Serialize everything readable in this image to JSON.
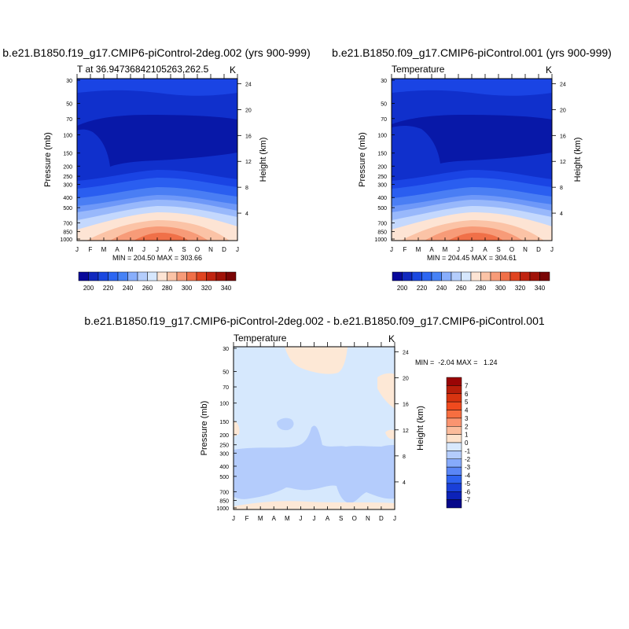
{
  "chart_data": [
    {
      "type": "heatmap",
      "title": "b.e21.B1850.f19_g17.CMIP6-piControl-2deg.002 (yrs 900-999)",
      "left_label": "T at 36.94736842105263,262.5",
      "right_label": "K",
      "stats": "MIN = 204.50 MAX = 303.66",
      "xlabel": "",
      "ylabel": "Pressure (mb)",
      "y2label": "Height (km)",
      "x_ticks": [
        "J",
        "F",
        "M",
        "A",
        "M",
        "J",
        "J",
        "A",
        "S",
        "O",
        "N",
        "D",
        "J"
      ],
      "p_ticks": [
        "30",
        "50",
        "70",
        "100",
        "150",
        "200",
        "250",
        "300",
        "400",
        "500",
        "700",
        "850",
        "1000"
      ],
      "h_ticks": [
        "24",
        "20",
        "16",
        "12",
        "8",
        "4"
      ],
      "colorbar_labels": [
        "200",
        "220",
        "240",
        "260",
        "280",
        "300",
        "320",
        "340"
      ],
      "colorbar_colors": [
        "#08089a",
        "#1028be",
        "#1a48e0",
        "#2c66f2",
        "#4682f6",
        "#88aefc",
        "#b4cdfc",
        "#d6e7fd",
        "#fde4d4",
        "#fbc3a6",
        "#f79b78",
        "#f07048",
        "#e04420",
        "#c02410",
        "#a01208",
        "#7a0505"
      ]
    },
    {
      "type": "heatmap",
      "title": "b.e21.B1850.f09_g17.CMIP6-piControl.001 (yrs 900-999)",
      "left_label": "Temperature",
      "right_label": "K",
      "stats": "MIN = 204.45 MAX = 304.61",
      "xlabel": "",
      "ylabel": "Pressure (mb)",
      "y2label": "Height (km)",
      "x_ticks": [
        "J",
        "F",
        "M",
        "A",
        "M",
        "J",
        "J",
        "A",
        "S",
        "O",
        "N",
        "D",
        "J"
      ],
      "p_ticks": [
        "30",
        "50",
        "70",
        "100",
        "150",
        "200",
        "250",
        "300",
        "400",
        "500",
        "700",
        "850",
        "1000"
      ],
      "h_ticks": [
        "24",
        "20",
        "16",
        "12",
        "8",
        "4"
      ],
      "colorbar_labels": [
        "200",
        "220",
        "240",
        "260",
        "280",
        "300",
        "320",
        "340"
      ],
      "colorbar_colors": [
        "#08089a",
        "#1028be",
        "#1a48e0",
        "#2c66f2",
        "#4682f6",
        "#88aefc",
        "#b4cdfc",
        "#d6e7fd",
        "#fde4d4",
        "#fbc3a6",
        "#f79b78",
        "#f07048",
        "#e04420",
        "#c02410",
        "#a01208",
        "#7a0505"
      ]
    },
    {
      "type": "heatmap",
      "title": "b.e21.B1850.f19_g17.CMIP6-piControl-2deg.002 - b.e21.B1850.f09_g17.CMIP6-piControl.001",
      "left_label": "Temperature",
      "right_label": "K",
      "stats": "MIN =  -2.04 MAX =   1.24",
      "xlabel": "",
      "ylabel": "Pressure (mb)",
      "y2label": "Height (km)",
      "x_ticks": [
        "J",
        "F",
        "M",
        "A",
        "M",
        "J",
        "J",
        "A",
        "S",
        "O",
        "N",
        "D",
        "J"
      ],
      "p_ticks": [
        "30",
        "50",
        "70",
        "100",
        "150",
        "200",
        "250",
        "300",
        "400",
        "500",
        "700",
        "850",
        "1000"
      ],
      "h_ticks": [
        "24",
        "20",
        "16",
        "12",
        "8",
        "4"
      ],
      "colorbar_labels": [
        "7",
        "6",
        "5",
        "4",
        "3",
        "2",
        "1",
        "0",
        "-1",
        "-2",
        "-3",
        "-4",
        "-5",
        "-6",
        "-7"
      ],
      "colorbar_colors": [
        "#9a0505",
        "#b81e0a",
        "#d83410",
        "#f04a1e",
        "#f76e40",
        "#fa9470",
        "#fbbc9c",
        "#fde2cc",
        "#d8e8fd",
        "#b4ccfc",
        "#86aafb",
        "#5a86f6",
        "#2e62f0",
        "#1a40d8",
        "#0c22b8",
        "#06088a"
      ]
    }
  ]
}
